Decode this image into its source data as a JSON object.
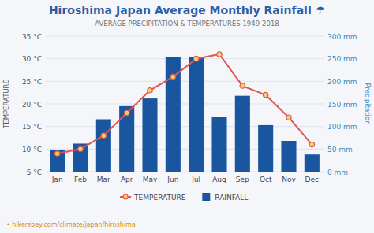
{
  "chart_data": {
    "type": "bar",
    "title": "Hiroshima Japan Average Monthly Rainfall ☂",
    "subtitle": "AVERAGE PRECIPITATION & TEMPERATURES 1949-2018",
    "categories": [
      "Jan",
      "Feb",
      "Mar",
      "Apr",
      "May",
      "Jun",
      "Jul",
      "Aug",
      "Sep",
      "Oct",
      "Nov",
      "Dec"
    ],
    "series": [
      {
        "name": "TEMPERATURE",
        "type": "line",
        "marker": "circle",
        "color": "#e05555",
        "values": [
          9,
          10,
          13,
          18,
          23,
          26,
          30,
          31,
          24,
          22,
          17,
          11
        ]
      },
      {
        "name": "RAINFALL",
        "type": "bar",
        "axis": "y2",
        "color": "#1a56a0",
        "values": [
          48,
          62,
          116,
          145,
          162,
          253,
          253,
          122,
          168,
          103,
          68,
          38
        ]
      }
    ],
    "ylabel": "TEMPERATURE",
    "y2label": "Precipitation",
    "ylim": [
      5,
      35
    ],
    "yticks": [
      {
        "value": 5,
        "label": "5 °C"
      },
      {
        "value": 10,
        "label": "10 °C"
      },
      {
        "value": 15,
        "label": "15 °C"
      },
      {
        "value": 20,
        "label": "20 °C"
      },
      {
        "value": 25,
        "label": "25 °C"
      },
      {
        "value": 30,
        "label": "30 °C"
      },
      {
        "value": 35,
        "label": "35 °C"
      }
    ],
    "y2lim": [
      0,
      300
    ],
    "y2ticks": [
      {
        "value": 0,
        "label": "0 mm"
      },
      {
        "value": 50,
        "label": "50 mm"
      },
      {
        "value": 100,
        "label": "100 mm"
      },
      {
        "value": 150,
        "label": "150 mm"
      },
      {
        "value": 200,
        "label": "200 mm"
      },
      {
        "value": 250,
        "label": "250 mm"
      },
      {
        "value": 300,
        "label": "300 mm"
      }
    ],
    "grid": true,
    "legend": "bottom",
    "annotations": [
      "• hikersbay.com/climate/japan/hiroshima"
    ]
  }
}
